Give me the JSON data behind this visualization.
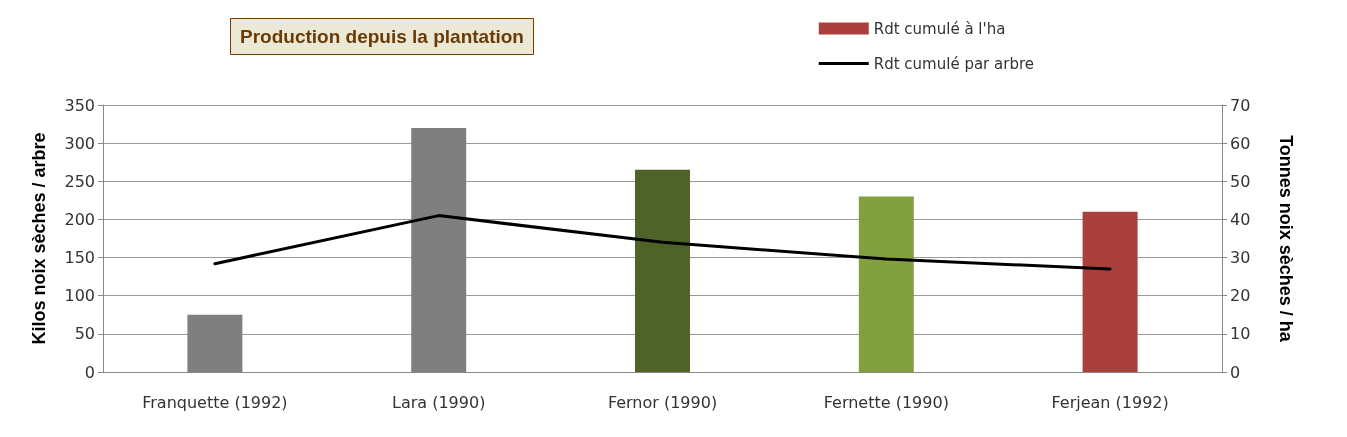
{
  "chart_data": {
    "type": "bar",
    "title": "Production depuis la plantation",
    "ylabel": "Kilos noix sèches / arbre",
    "y2label": "Tonnes noix sèches / ha",
    "categories": [
      "Franquette (1992)",
      "Lara (1990)",
      "Fernor (1990)",
      "Fernette (1990)",
      "Ferjean (1992)"
    ],
    "series": [
      {
        "name": "Rdt cumulé à l'ha",
        "axis": "y2",
        "color": "#a9403c",
        "colors": [
          "#7f7f7f",
          "#7f7f7f",
          "#4f6228",
          "#82a040",
          "#a9403c"
        ],
        "values": [
          15,
          64,
          53,
          46,
          42
        ]
      },
      {
        "name": "Rdt cumulé par arbre",
        "type": "line",
        "axis": "y",
        "color": "#000000",
        "values": [
          142,
          205,
          170,
          148,
          135
        ]
      }
    ],
    "ylim": [
      0,
      350
    ],
    "yticks": [
      0,
      50,
      100,
      150,
      200,
      250,
      300,
      350
    ],
    "y2lim": [
      0,
      70
    ],
    "y2ticks": [
      0,
      10,
      20,
      30,
      40,
      50,
      60,
      70
    ],
    "grid": "y",
    "legend": "top right",
    "marker": "none",
    "line_style": "solid"
  }
}
